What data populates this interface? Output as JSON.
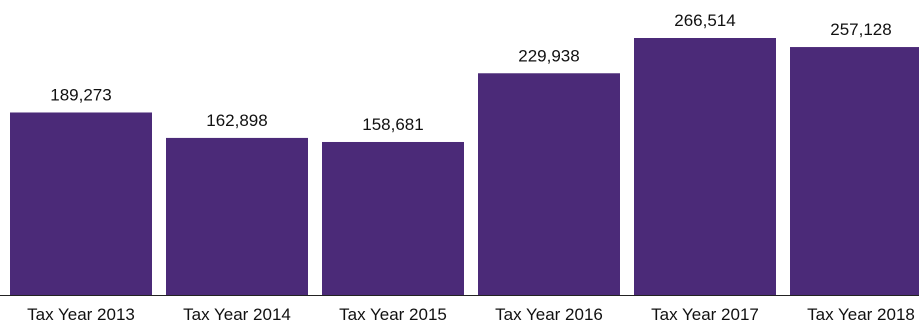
{
  "chart_data": {
    "type": "bar",
    "categories": [
      "Tax Year 2013",
      "Tax Year 2014",
      "Tax Year 2015",
      "Tax Year 2016",
      "Tax Year 2017",
      "Tax Year 2018"
    ],
    "values": [
      189273,
      162898,
      158681,
      229938,
      266514,
      257128
    ],
    "data_labels": [
      "189,273",
      "162,898",
      "158,681",
      "229,938",
      "266,514",
      "257,128"
    ],
    "title": "",
    "xlabel": "",
    "ylabel": "",
    "ylim": [
      0,
      266514
    ],
    "grid": false,
    "legend": "none",
    "bar_color": "#4b2a78",
    "axis_color": "#222222"
  }
}
